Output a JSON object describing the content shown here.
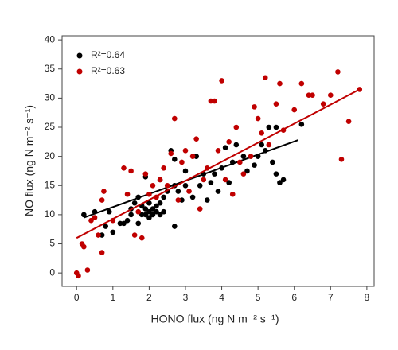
{
  "chart_data": {
    "type": "scatter",
    "xlabel": "HONO flux (ng N m⁻² s⁻¹)",
    "ylabel": "NO flux (ng N m⁻² s⁻¹)",
    "xlim": [
      -0.4,
      8.2
    ],
    "ylim": [
      -2.3,
      40.7
    ],
    "xticks": [
      0,
      1,
      2,
      3,
      4,
      5,
      6,
      7,
      8
    ],
    "yticks": [
      0,
      5,
      10,
      15,
      20,
      25,
      30,
      35,
      40
    ],
    "grid": false,
    "legend": "upper left",
    "series": [
      {
        "name": "R²=0.64",
        "color": "#000000",
        "x": [
          0.2,
          0.5,
          0.7,
          0.8,
          0.9,
          1,
          1.2,
          1.3,
          1.4,
          1.5,
          1.5,
          1.6,
          1.7,
          1.7,
          1.8,
          1.8,
          1.9,
          1.9,
          2,
          2,
          2,
          2.1,
          2.1,
          2.2,
          2.2,
          2.3,
          2.3,
          2.4,
          2.4,
          2.5,
          2.6,
          2.7,
          2.7,
          2.8,
          2.9,
          3,
          3,
          3.2,
          3.3,
          3.4,
          3.5,
          3.6,
          3.7,
          3.8,
          3.9,
          4,
          4.1,
          4.2,
          4.3,
          4.4,
          4.6,
          4.7,
          4.9,
          5,
          5.1,
          5.2,
          5.3,
          5.4,
          5.5,
          5.5,
          5.6,
          5.7,
          6.2,
          2.7,
          2.3,
          1.9
        ],
        "values": [
          10,
          10.5,
          6.5,
          8,
          10.5,
          7,
          8.5,
          8.5,
          9,
          10,
          11,
          12,
          8.5,
          13,
          10,
          11.5,
          11,
          10,
          10.5,
          12,
          9.5,
          11,
          10,
          10.5,
          11.5,
          10,
          12,
          10.5,
          13,
          14,
          21,
          19.5,
          15,
          14,
          12.5,
          15,
          17.5,
          13,
          20,
          15,
          17,
          12.5,
          15.5,
          17,
          14,
          18,
          21.5,
          15.5,
          19,
          22,
          20,
          17.5,
          18.5,
          20,
          22,
          21,
          25,
          19,
          25,
          17,
          15.5,
          16,
          25.5,
          8,
          16,
          16.5
        ],
        "fit": {
          "x": [
            0.2,
            6.1
          ],
          "y": [
            9.5,
            22.8
          ]
        }
      },
      {
        "name": "R²=0.63",
        "color": "#c00000",
        "x": [
          0,
          0.05,
          0.15,
          0.2,
          0.3,
          0.4,
          0.5,
          0.6,
          0.7,
          0.7,
          0.75,
          1,
          1.3,
          1.4,
          1.5,
          1.6,
          1.7,
          1.8,
          1.9,
          2,
          2.1,
          2.2,
          2.3,
          2.4,
          2.5,
          2.6,
          2.7,
          2.8,
          2.9,
          3,
          3.1,
          3.2,
          3.3,
          3.4,
          3.5,
          3.6,
          3.7,
          3.8,
          3.9,
          4,
          4.1,
          4.2,
          4.3,
          4.4,
          4.5,
          4.6,
          4.8,
          4.9,
          5,
          5.1,
          5.2,
          5.3,
          5.5,
          5.6,
          5.7,
          6,
          6.2,
          6.4,
          6.5,
          6.8,
          7,
          7.2,
          7.3,
          7.5,
          7.8
        ],
        "values": [
          0,
          -0.5,
          5,
          4.5,
          0.5,
          9,
          9.5,
          6.5,
          3.5,
          12.5,
          14,
          9,
          18,
          13.5,
          17.5,
          6.5,
          10.5,
          6,
          17,
          13.5,
          15,
          13,
          16,
          18,
          15,
          20.5,
          26.5,
          12.5,
          19,
          21,
          14,
          20,
          23,
          11,
          16,
          18,
          29.5,
          29.5,
          21,
          33,
          16,
          22.5,
          13.5,
          25,
          19,
          17,
          20,
          28.5,
          26.5,
          24,
          33.5,
          22,
          29,
          32.5,
          24.5,
          28,
          32.5,
          30.5,
          30.5,
          29,
          30.5,
          34.5,
          19.5,
          26,
          31.5
        ],
        "fit": {
          "x": [
            0,
            7.8
          ],
          "y": [
            6,
            31.5
          ]
        }
      }
    ]
  }
}
